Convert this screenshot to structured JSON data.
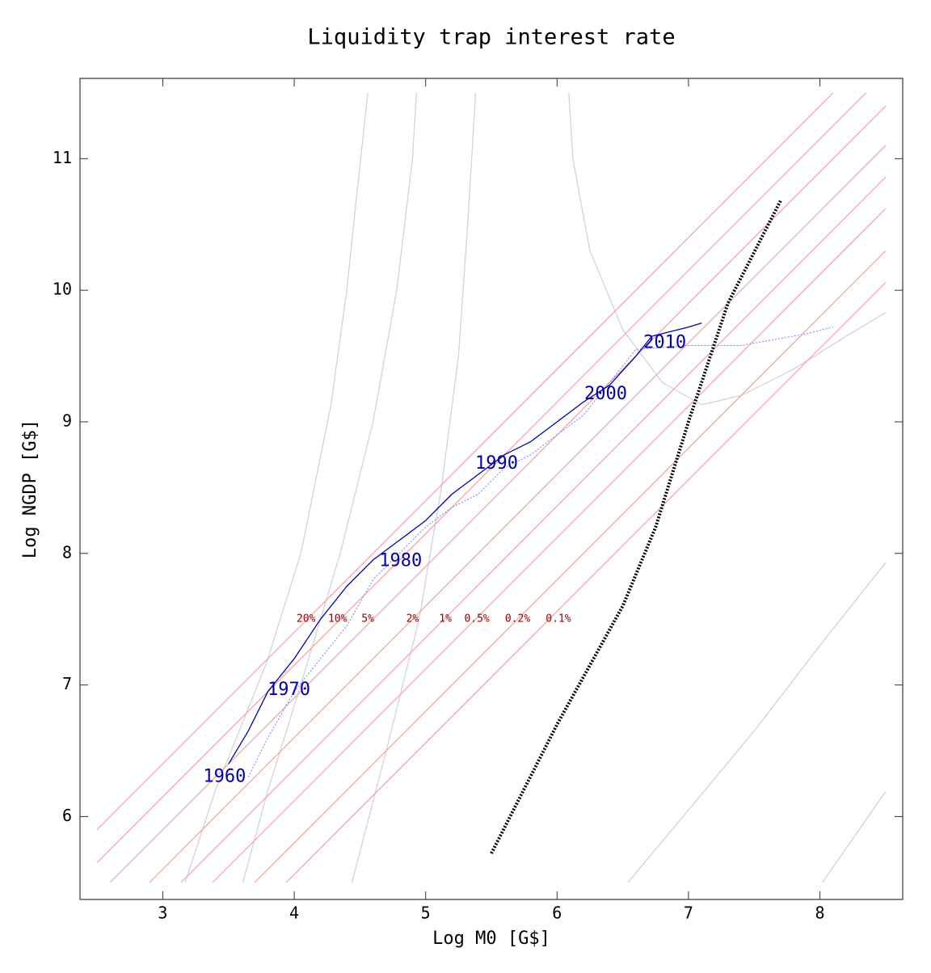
{
  "chart_data": {
    "type": "line",
    "title": "Liquidity trap interest rate",
    "x_label": "Log M0 [G$]",
    "y_label": "Log NGDP [G$]",
    "xlim": [
      2.37,
      8.63
    ],
    "ylim": [
      5.37,
      11.61
    ],
    "xticks": [
      3,
      4,
      5,
      6,
      7,
      8
    ],
    "yticks": [
      6,
      7,
      8,
      9,
      10,
      11
    ],
    "grid": false,
    "series": [
      {
        "color": "#d3d3d3",
        "style": "solid",
        "x": [
          3.17,
          3.4,
          3.79,
          4.05,
          4.28,
          4.4,
          4.47,
          4.56
        ],
        "values": [
          5.5,
          6.2,
          7.17,
          8.0,
          9.13,
          10.0,
          10.67,
          11.5
        ]
      },
      {
        "color": "#d3d3d3",
        "style": "solid",
        "x": [
          3.61,
          3.8,
          4.05,
          4.35,
          4.6,
          4.78,
          4.9,
          4.93
        ],
        "values": [
          5.5,
          6.2,
          7.0,
          8.0,
          9.0,
          10.0,
          11.0,
          11.5
        ]
      },
      {
        "color": "#d3d3d3",
        "style": "solid",
        "x": [
          4.44,
          4.7,
          4.95,
          5.12,
          5.25,
          5.32,
          5.38
        ],
        "values": [
          5.5,
          6.5,
          7.5,
          8.5,
          9.5,
          10.5,
          11.5
        ]
      },
      {
        "color": "#d3d3d3",
        "style": "solid",
        "x": [
          6.09,
          6.12,
          6.25,
          6.5,
          6.8,
          7.1,
          7.4,
          7.8,
          8.2,
          8.5
        ],
        "values": [
          11.5,
          11.0,
          10.3,
          9.7,
          9.3,
          9.13,
          9.2,
          9.4,
          9.65,
          9.83
        ]
      },
      {
        "color": "#d3d3d3",
        "style": "solid",
        "x": [
          6.54,
          7.0,
          7.5,
          8.0,
          8.5
        ],
        "values": [
          5.5,
          6.05,
          6.65,
          7.3,
          7.93
        ]
      },
      {
        "color": "#d3d3d3",
        "style": "solid",
        "x": [
          8.02,
          8.5
        ],
        "values": [
          5.5,
          6.19
        ]
      },
      {
        "color": "#f4a6a6",
        "style": "solid",
        "x": [
          2.5,
          8.1
        ],
        "values": [
          5.9,
          11.5
        ]
      },
      {
        "color": "#f4a6a6",
        "style": "solid",
        "x": [
          2.5,
          8.35
        ],
        "values": [
          5.65,
          11.5
        ]
      },
      {
        "color": "#f4a6a6",
        "style": "solid",
        "x": [
          2.6,
          8.5
        ],
        "values": [
          5.5,
          11.4
        ]
      },
      {
        "color": "#f4a6a6",
        "style": "solid",
        "x": [
          2.9,
          8.5
        ],
        "values": [
          5.5,
          11.1
        ]
      },
      {
        "color": "#f4a6a6",
        "style": "solid",
        "x": [
          3.14,
          8.5
        ],
        "values": [
          5.5,
          10.86
        ]
      },
      {
        "color": "#f4a6a6",
        "style": "solid",
        "x": [
          3.38,
          8.5
        ],
        "values": [
          5.5,
          10.62
        ]
      },
      {
        "color": "#f4a6a6",
        "style": "solid",
        "x": [
          3.7,
          8.5
        ],
        "values": [
          5.5,
          10.3
        ]
      },
      {
        "color": "#f4a6a6",
        "style": "solid",
        "x": [
          3.94,
          8.5
        ],
        "values": [
          5.5,
          10.06
        ]
      },
      {
        "color": "#7b7bff",
        "style": "dotted",
        "x": [
          3.65,
          3.8,
          4.0,
          4.2,
          4.4,
          4.6,
          4.8,
          5.0,
          5.2,
          5.4,
          5.6,
          5.8,
          6.0,
          6.2,
          6.4,
          6.6,
          7.0,
          7.4,
          7.9,
          8.1
        ],
        "values": [
          6.3,
          6.6,
          6.95,
          7.2,
          7.45,
          7.8,
          8.0,
          8.2,
          8.35,
          8.45,
          8.65,
          8.75,
          8.9,
          9.05,
          9.3,
          9.55,
          9.58,
          9.58,
          9.67,
          9.72
        ]
      },
      {
        "color": "#0000b0",
        "style": "solid",
        "x": [
          3.5,
          3.65,
          3.8,
          4.0,
          4.2,
          4.4,
          4.6,
          4.8,
          5.0,
          5.2,
          5.4,
          5.6,
          5.8,
          6.0,
          6.2,
          6.4,
          6.6,
          6.72,
          7.0,
          7.1
        ],
        "values": [
          6.4,
          6.65,
          6.95,
          7.2,
          7.5,
          7.75,
          7.95,
          8.1,
          8.25,
          8.45,
          8.6,
          8.75,
          8.85,
          9.0,
          9.15,
          9.28,
          9.5,
          9.65,
          9.72,
          9.75
        ]
      },
      {
        "color": "#000000",
        "style": "heavy-dotted",
        "x": [
          5.5,
          6.0,
          6.5,
          6.75,
          7.0,
          7.3,
          7.7
        ],
        "values": [
          5.72,
          6.7,
          7.6,
          8.2,
          9.0,
          9.9,
          10.68
        ]
      }
    ],
    "annotations": [
      {
        "text": "20%",
        "x": 4.09,
        "y": 7.5,
        "color": "#a00000"
      },
      {
        "text": "10%",
        "x": 4.33,
        "y": 7.5,
        "color": "#a00000"
      },
      {
        "text": "5%",
        "x": 4.56,
        "y": 7.5,
        "color": "#a00000"
      },
      {
        "text": "2%",
        "x": 4.9,
        "y": 7.5,
        "color": "#a00000"
      },
      {
        "text": "1%",
        "x": 5.15,
        "y": 7.5,
        "color": "#a00000"
      },
      {
        "text": "0.5%",
        "x": 5.39,
        "y": 7.5,
        "color": "#a00000"
      },
      {
        "text": "0.2%",
        "x": 5.7,
        "y": 7.5,
        "color": "#a00000"
      },
      {
        "text": "0.1%",
        "x": 6.01,
        "y": 7.5,
        "color": "#a00000"
      },
      {
        "text": "1960",
        "x": 3.47,
        "y": 6.3,
        "color": "#0000b0"
      },
      {
        "text": "1970",
        "x": 3.96,
        "y": 6.96,
        "color": "#0000b0"
      },
      {
        "text": "1980",
        "x": 4.81,
        "y": 7.94,
        "color": "#0000b0"
      },
      {
        "text": "1990",
        "x": 5.54,
        "y": 8.68,
        "color": "#0000b0"
      },
      {
        "text": "2000",
        "x": 6.37,
        "y": 9.21,
        "color": "#0000b0"
      },
      {
        "text": "2010",
        "x": 6.82,
        "y": 9.6,
        "color": "#0000b0"
      }
    ]
  }
}
